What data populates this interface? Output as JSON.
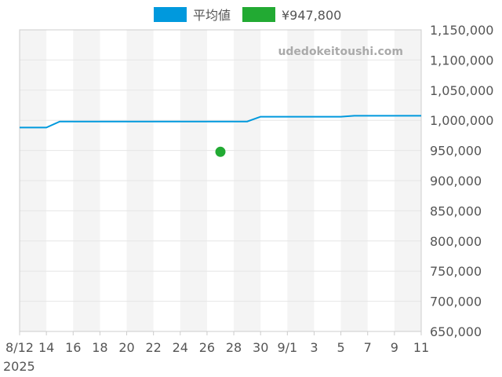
{
  "chart_data": {
    "type": "line",
    "watermark": "udedokeitoushi.com",
    "legend_placement": "top-center",
    "grid": true,
    "xlabel": "",
    "ylabel": "",
    "ylim": [
      650000,
      1150000
    ],
    "y_ticks": [
      650000,
      700000,
      750000,
      800000,
      850000,
      900000,
      950000,
      1000000,
      1050000,
      1100000,
      1150000
    ],
    "y_tick_labels": [
      "650,000",
      "700,000",
      "750,000",
      "800,000",
      "850,000",
      "900,000",
      "950,000",
      "1,000,000",
      "1,050,000",
      "1,100,000",
      "1,150,000"
    ],
    "x_range": [
      "2025-08-12",
      "2025-09-11"
    ],
    "x_ticks": [
      "2025-08-12",
      "2025-08-14",
      "2025-08-16",
      "2025-08-18",
      "2025-08-20",
      "2025-08-22",
      "2025-08-24",
      "2025-08-26",
      "2025-08-28",
      "2025-08-30",
      "2025-09-01",
      "2025-09-03",
      "2025-09-05",
      "2025-09-07",
      "2025-09-09",
      "2025-09-11"
    ],
    "x_tick_labels": [
      "8/12",
      "14",
      "16",
      "18",
      "20",
      "22",
      "24",
      "26",
      "28",
      "30",
      "9/1",
      "3",
      "5",
      "7",
      "9",
      "11"
    ],
    "year_label": "2025",
    "series": [
      {
        "name": "平均値",
        "type": "line",
        "color": "#0099dd",
        "points": [
          {
            "x": "2025-08-12",
            "y": 988000
          },
          {
            "x": "2025-08-14",
            "y": 988000
          },
          {
            "x": "2025-08-15",
            "y": 998000
          },
          {
            "x": "2025-08-29",
            "y": 998000
          },
          {
            "x": "2025-08-30",
            "y": 1006000
          },
          {
            "x": "2025-09-05",
            "y": 1006000
          },
          {
            "x": "2025-09-06",
            "y": 1007500
          },
          {
            "x": "2025-09-11",
            "y": 1007500
          }
        ]
      },
      {
        "name": "¥947,800",
        "type": "scatter",
        "color": "#22aa33",
        "points": [
          {
            "x": "2025-08-27",
            "y": 947800
          }
        ]
      }
    ]
  }
}
